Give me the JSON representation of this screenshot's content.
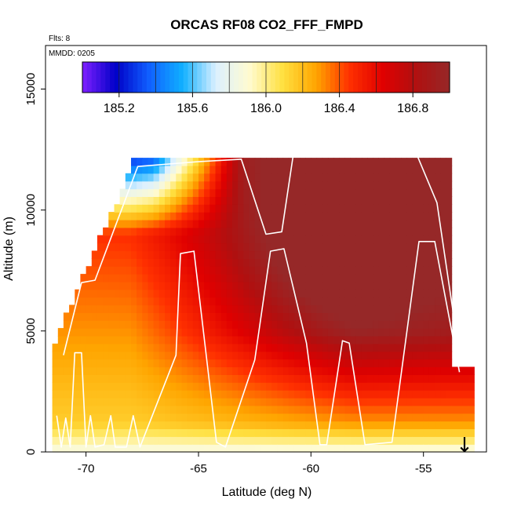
{
  "chart_data": {
    "type": "heatmap",
    "title": "ORCAS RF08 CO2_FFF_FMPD",
    "subtitle_flights": "Flts: 8",
    "subtitle_date": "MMDD: 0205",
    "xlabel": "Latitude (deg N)",
    "ylabel": "Altitude (m)",
    "xlim": [
      -71.8,
      -52.2
    ],
    "ylim": [
      0,
      16800
    ],
    "x_ticks": [
      -70,
      -65,
      -60,
      -55
    ],
    "x_tick_labels": [
      "-70",
      "-65",
      "-60",
      "-55"
    ],
    "y_ticks": [
      0,
      5000,
      10000,
      15000
    ],
    "y_tick_labels": [
      "0",
      "5000",
      "10000",
      "15000"
    ],
    "colorbar": {
      "range": [
        185.0,
        187.0
      ],
      "ticks": [
        185.2,
        185.6,
        186.0,
        186.4,
        186.8
      ],
      "tick_labels": [
        "185.2",
        "185.6",
        "186.0",
        "186.4",
        "186.8"
      ],
      "colors": [
        "#7f1fff",
        "#0000c8",
        "#1060ff",
        "#10b0ff",
        "#dcf0ff",
        "#fffbd0",
        "#ffe040",
        "#ffa500",
        "#ff3000",
        "#e00000",
        "#b01010",
        "#962828"
      ]
    },
    "field_description_values": {
      "high_latitude_low_altitude": 186.1,
      "mid_column_core": 186.9,
      "upper_south": 185.6
    },
    "flight_track": [
      [
        -71.3,
        1500
      ],
      [
        -71.1,
        200
      ],
      [
        -70.9,
        1400
      ],
      [
        -70.7,
        200
      ],
      [
        -70.5,
        4100
      ],
      [
        -70.2,
        4100
      ],
      [
        -70.0,
        200
      ],
      [
        -69.8,
        1500
      ],
      [
        -69.6,
        200
      ],
      [
        -69.2,
        300
      ],
      [
        -68.9,
        1500
      ],
      [
        -68.7,
        200
      ],
      [
        -68.2,
        200
      ],
      [
        -67.9,
        1500
      ],
      [
        -67.6,
        200
      ],
      [
        -66.0,
        4000
      ],
      [
        -65.8,
        8200
      ],
      [
        -65.2,
        8300
      ],
      [
        -64.2,
        400
      ],
      [
        -63.8,
        200
      ],
      [
        -62.5,
        3800
      ],
      [
        -61.8,
        8300
      ],
      [
        -61.2,
        8400
      ],
      [
        -60.2,
        4500
      ],
      [
        -59.6,
        300
      ],
      [
        -59.3,
        300
      ],
      [
        -58.6,
        4600
      ],
      [
        -58.3,
        4500
      ],
      [
        -57.6,
        300
      ],
      [
        -56.4,
        400
      ],
      [
        -55.2,
        8700
      ],
      [
        -54.5,
        8700
      ],
      [
        -53.4,
        3300
      ]
    ],
    "flight_track_upper": [
      [
        -71.0,
        4000
      ],
      [
        -70.2,
        7000
      ],
      [
        -69.6,
        7100
      ],
      [
        -67.7,
        11800
      ],
      [
        -65.0,
        12000
      ],
      [
        -63.1,
        12100
      ],
      [
        -62.0,
        9000
      ],
      [
        -61.3,
        9100
      ],
      [
        -60.8,
        12200
      ],
      [
        -55.3,
        12300
      ],
      [
        -54.4,
        10300
      ],
      [
        -53.4,
        4000
      ]
    ],
    "annotation": "↓"
  }
}
